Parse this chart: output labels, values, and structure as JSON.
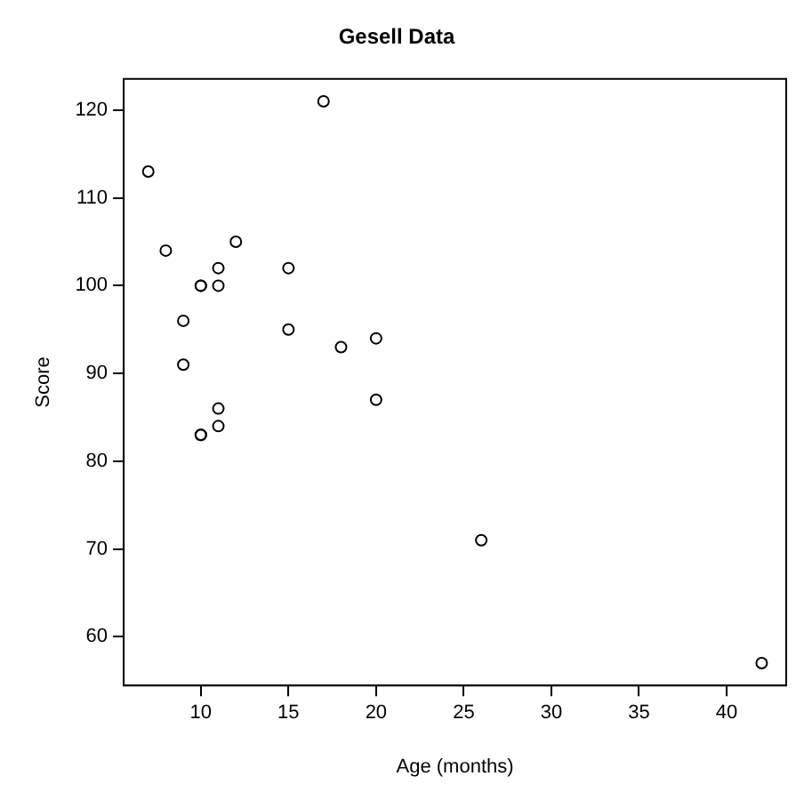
{
  "chart_data": {
    "type": "scatter",
    "title": "Gesell Data",
    "xlabel": "Age (months)",
    "ylabel": "Score",
    "x": [
      15,
      26,
      10,
      9,
      15,
      20,
      18,
      11,
      8,
      20,
      7,
      9,
      10,
      11,
      11,
      10,
      12,
      42,
      17,
      11,
      10
    ],
    "values": [
      95,
      71,
      83,
      91,
      102,
      87,
      93,
      100,
      104,
      94,
      113,
      96,
      83,
      84,
      102,
      100,
      105,
      57,
      121,
      86,
      100
    ],
    "color": "#000000",
    "marker": "circle",
    "grid": false,
    "legend": false,
    "xlim": [
      5.6,
      43.4
    ],
    "xticks": [
      10,
      15,
      20,
      25,
      30,
      35,
      40
    ],
    "ylim": [
      54.44,
      123.56
    ],
    "yticks": [
      60,
      70,
      80,
      90,
      100,
      110,
      120
    ]
  }
}
